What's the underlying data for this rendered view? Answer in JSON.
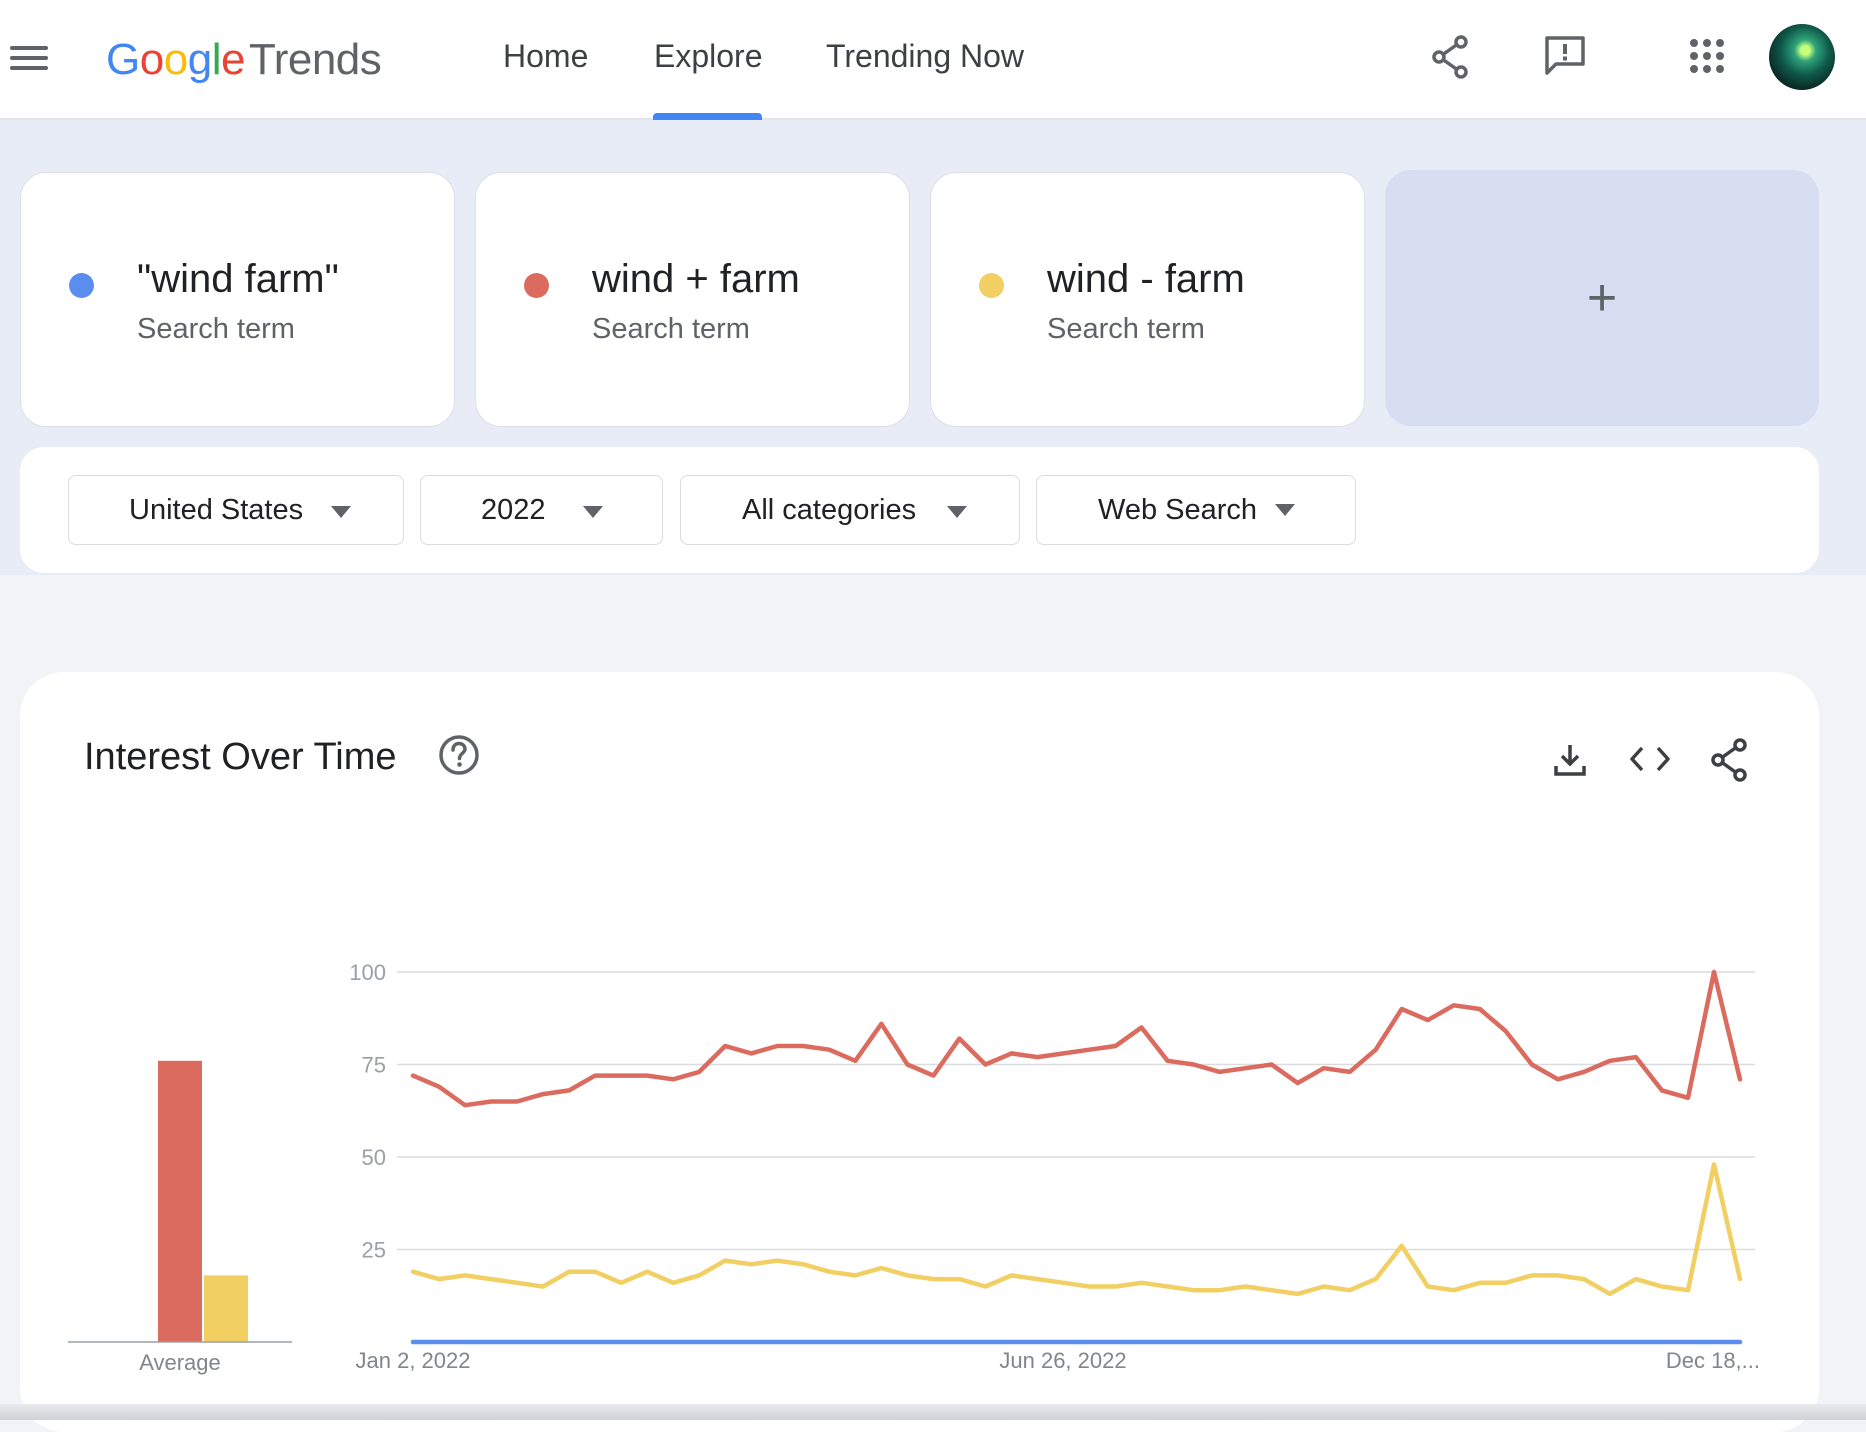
{
  "header": {
    "logo": {
      "google": "Google",
      "trends": "Trends"
    },
    "nav": [
      {
        "label": "Home",
        "active": false
      },
      {
        "label": "Explore",
        "active": true
      },
      {
        "label": "Trending Now",
        "active": false
      }
    ],
    "icons": [
      "menu-icon",
      "share-icon",
      "feedback-icon",
      "apps-icon",
      "avatar"
    ]
  },
  "search_terms": [
    {
      "name": "\"wind farm\"",
      "type": "Search term",
      "color": "#5b8def"
    },
    {
      "name": "wind + farm",
      "type": "Search term",
      "color": "#db6b5e"
    },
    {
      "name": "wind - farm",
      "type": "Search term",
      "color": "#f2cf63"
    }
  ],
  "add_term": {
    "symbol": "+"
  },
  "filters": {
    "region": "United States",
    "time": "2022",
    "category": "All categories",
    "property": "Web Search"
  },
  "interest_card": {
    "title": "Interest Over Time",
    "icons": [
      "help-icon",
      "download-icon",
      "embed-icon",
      "share-icon"
    ]
  },
  "chart_data": {
    "type": "line",
    "yticks": [
      "100",
      "75",
      "50",
      "25"
    ],
    "ylim": [
      0,
      100
    ],
    "x_tick_labels": [
      "Jan 2, 2022",
      "Jun 26, 2022",
      "Dec 18,..."
    ],
    "average_label": "Average",
    "averages": [
      {
        "color": "#5b8def",
        "value": 0
      },
      {
        "color": "#db6b5e",
        "value": 76
      },
      {
        "color": "#f2cf63",
        "value": 18
      }
    ],
    "series": [
      {
        "color": "#5b8def",
        "values": [
          0,
          0,
          0,
          0,
          0,
          0,
          0,
          0,
          0,
          0,
          0,
          0,
          0,
          0,
          0,
          0,
          0,
          0,
          0,
          0,
          0,
          0,
          0,
          0,
          0,
          0,
          0,
          0,
          0,
          0,
          0,
          0,
          0,
          0,
          0,
          0,
          0,
          0,
          0,
          0,
          0,
          0,
          0,
          0,
          0,
          0,
          0,
          0,
          0,
          0,
          0,
          0
        ]
      },
      {
        "color": "#db6b5e",
        "values": [
          72,
          69,
          64,
          65,
          65,
          67,
          68,
          72,
          72,
          72,
          71,
          73,
          80,
          78,
          80,
          80,
          79,
          76,
          86,
          75,
          72,
          82,
          75,
          78,
          77,
          78,
          79,
          80,
          85,
          76,
          75,
          73,
          74,
          75,
          70,
          74,
          73,
          79,
          90,
          87,
          91,
          90,
          84,
          75,
          71,
          73,
          76,
          77,
          68,
          66,
          100,
          71
        ]
      },
      {
        "color": "#f2cf63",
        "values": [
          19,
          17,
          18,
          17,
          16,
          15,
          19,
          19,
          16,
          19,
          16,
          18,
          22,
          21,
          22,
          21,
          19,
          18,
          20,
          18,
          17,
          17,
          15,
          18,
          17,
          16,
          15,
          15,
          16,
          15,
          14,
          14,
          15,
          14,
          13,
          15,
          14,
          17,
          26,
          15,
          14,
          16,
          16,
          18,
          18,
          17,
          13,
          17,
          15,
          14,
          48,
          17
        ]
      }
    ]
  }
}
